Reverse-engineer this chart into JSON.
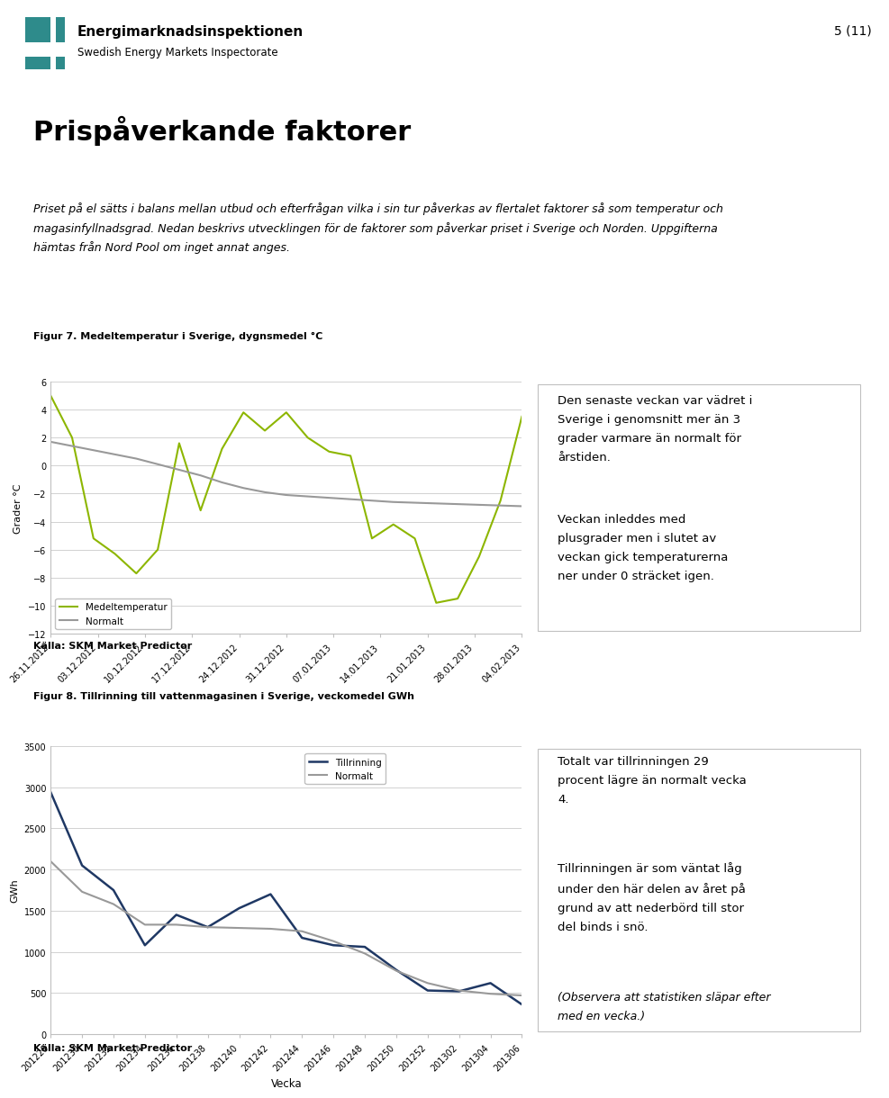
{
  "page_title": "Prispåverkande faktorer",
  "page_number": "5 (11)",
  "org_name": "Energimarknadsinspektionen",
  "org_sub": "Swedish Energy Markets Inspectorate",
  "intro_line1": "Priset på el sätts i balans mellan utbud och efterfrågan vilka i sin tur påverkas av flertalet faktorer så som temperatur och",
  "intro_line2": "magasinfyllnadsgrad. Nedan beskrivs utvecklingen för de faktorer som påverkar priset i Sverige och Norden. Uppgifterna",
  "intro_line3": "hämtas från Nord Pool om inget annat anges.",
  "fig1_label": "Figur 7. Medeltemperatur i Sverige, dygnsmedel °C",
  "fig1_ylabel": "Grader °C",
  "fig1_ylim": [
    -12,
    6
  ],
  "fig1_yticks": [
    6,
    4,
    2,
    0,
    -2,
    -4,
    -6,
    -8,
    -10,
    -12
  ],
  "fig1_xticks": [
    "26.11.2012",
    "03.12.2012",
    "10.12.2012",
    "17.12.2012",
    "24.12.2012",
    "31.12.2012",
    "07.01.2013",
    "14.01.2013",
    "21.01.2013",
    "28.01.2013",
    "04.02.2013"
  ],
  "fig1_temp": [
    5.0,
    2.0,
    -5.2,
    -6.3,
    -7.7,
    -6.0,
    1.6,
    -3.2,
    1.2,
    3.8,
    2.5,
    3.8,
    2.0,
    1.0,
    0.7,
    -5.2,
    -4.2,
    -5.2,
    -9.8,
    -9.5,
    -6.5,
    -2.5,
    3.5
  ],
  "fig1_normal": [
    1.7,
    1.4,
    1.1,
    0.8,
    0.5,
    0.1,
    -0.3,
    -0.7,
    -1.2,
    -1.6,
    -1.9,
    -2.1,
    -2.2,
    -2.3,
    -2.4,
    -2.5,
    -2.6,
    -2.65,
    -2.7,
    -2.75,
    -2.8,
    -2.85,
    -2.9
  ],
  "fig1_temp_color": "#8DB600",
  "fig1_normal_color": "#999999",
  "fig1_legend1": "Medeltemperatur",
  "fig1_legend2": "Normalt",
  "fig1_text1": "Den senaste veckan var vädret i\nSverige i genomsnitt mer än 3\ngrader varmare än normalt för\nårstiden.",
  "fig1_text2": "Veckan inleddes med\nplusgrader men i slutet av\nveckan gick temperaturerna\nner under 0 sträcket igen.",
  "source1": "Källa: SKM Market Predictor",
  "fig2_label": "Figur 8. Tillrinning till vattenmagasinen i Sverige, veckomedel GWh",
  "fig2_xlabel": "Vecka",
  "fig2_ylabel": "GWh",
  "fig2_ylim": [
    0,
    3500
  ],
  "fig2_yticks": [
    0,
    500,
    1000,
    1500,
    2000,
    2500,
    3000,
    3500
  ],
  "fig2_xticks": [
    "201228",
    "201230",
    "201232",
    "201234",
    "201236",
    "201238",
    "201240",
    "201242",
    "201244",
    "201246",
    "201248",
    "201250",
    "201252",
    "201302",
    "201304",
    "201306"
  ],
  "fig2_inflow": [
    2940,
    2050,
    1750,
    1080,
    1450,
    1300,
    1530,
    1700,
    1170,
    1080,
    1060,
    780,
    530,
    520,
    620,
    360
  ],
  "fig2_normal": [
    2100,
    1730,
    1580,
    1330,
    1330,
    1300,
    1290,
    1280,
    1250,
    1130,
    980,
    770,
    620,
    530,
    490,
    470
  ],
  "fig2_inflow_color": "#1F3864",
  "fig2_normal_color": "#999999",
  "fig2_legend1": "Tillrinning",
  "fig2_legend2": "Normalt",
  "fig2_text1": "Totalt var tillrinningen 29\nprocent lägre än normalt vecka\n4.",
  "fig2_text2": "Tillrinningen är som väntat låg\nunder den här delen av året på\ngrund av att nederbörd till stor\ndel binds i snö.",
  "fig2_text3": "(Observera att statistiken släpar efter\nmed en vecka.)",
  "source2": "Källa: SKM Market Predictor",
  "logo_colors": [
    "#2E8B8B",
    "#2E8B8B",
    "#2E8B8B",
    "#2E8B8B"
  ],
  "header_line_color": "#000000",
  "grid_color": "#C0C0C0",
  "spine_color": "#C0C0C0",
  "text_box_edge_color": "#C0C0C0"
}
